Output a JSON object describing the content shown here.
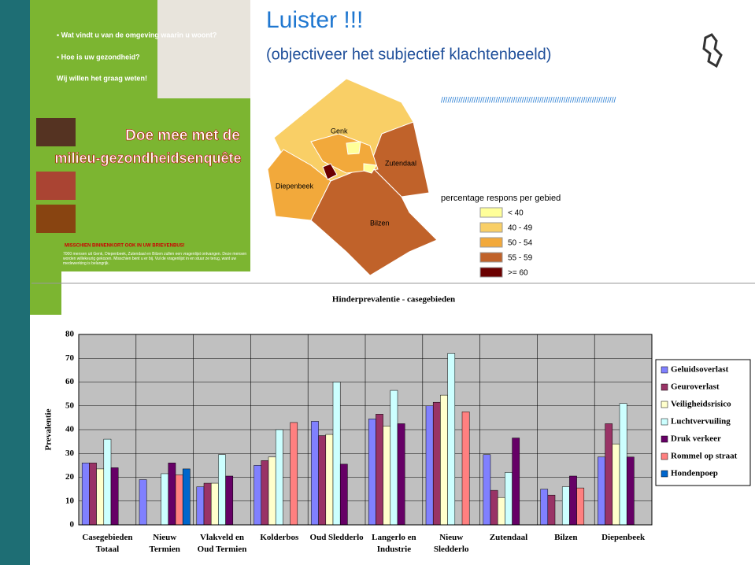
{
  "header": {
    "title": "Luister !!!",
    "subtitle": "(objectiveer het subjectief klachtenbeeld)",
    "decoration": "////////////////////////////////////////////////////////////////////////////////"
  },
  "poster": {
    "questions": [
      "• Wat vindt u van de omgeving waarin u woont?",
      "• Hoe is uw gezondheid?"
    ],
    "call": "Wij willen het graag weten!",
    "banner": [
      "Doe mee met de",
      "milieu-gezondheidsenquête"
    ],
    "mailbox": "MISSCHIEN BINNENKORT OOK IN UW BRIEVENBUS!",
    "body": "7000 mensen uit Genk, Diepenbeek, Zutendaal en Bilzen zullen een vragenlijst ontvangen. Deze mensen worden willekeurig gekozen. Misschien bent u er bij. Vul de vragenlijst in en stuur ze terug, want uw medewerking is belangrijk."
  },
  "map": {
    "regions": [
      "Genk",
      "Zutendaal",
      "Diepenbeek",
      "Bilzen"
    ],
    "legend_title": "percentage respons per gebied",
    "legend": [
      {
        "label": "< 40",
        "color": "#ffff99"
      },
      {
        "label": "40 - 49",
        "color": "#f9cf66"
      },
      {
        "label": "50 - 54",
        "color": "#f2a93b"
      },
      {
        "label": "55 - 59",
        "color": "#c0622a"
      },
      {
        "label": ">= 60",
        "color": "#6b0000"
      }
    ]
  },
  "chart_data": {
    "type": "bar",
    "title": "Hinderprevalentie - casegebieden",
    "y_label": "Prevalentie",
    "categories": [
      "Casegebieden\nTotaal",
      "Nieuw\nTermien",
      "Vlakveld en\nOud Termien",
      "Kolderbos",
      "Oud Sledderlo",
      "Langerlo en\nIndustrie",
      "Nieuw\nSledderlo",
      "Zutendaal",
      "Bilzen",
      "Diepenbeek"
    ],
    "series": [
      {
        "name": "Geluidsoverlast",
        "color": "#8080ff",
        "values": [
          26,
          19,
          16,
          25,
          43.5,
          44.5,
          50,
          29.5,
          15,
          28.5
        ]
      },
      {
        "name": "Geuroverlast",
        "color": "#993366",
        "values": [
          26,
          null,
          17.5,
          27,
          37.5,
          46.5,
          51.5,
          14.5,
          12.5,
          42.5
        ]
      },
      {
        "name": "Veiligheidsrisico",
        "color": "#ffffcc",
        "values": [
          23.5,
          null,
          17.5,
          28.5,
          38,
          41.5,
          54.5,
          11.5,
          null,
          34
        ]
      },
      {
        "name": "Luchtvervuiling",
        "color": "#ccffff",
        "values": [
          36,
          21.5,
          29.5,
          40,
          60,
          56.5,
          72,
          22,
          16,
          51
        ]
      },
      {
        "name": "Druk verkeer",
        "color": "#660066",
        "values": [
          24,
          26,
          20.5,
          null,
          25.5,
          42.5,
          null,
          36.5,
          20.5,
          28.5
        ]
      },
      {
        "name": "Rommel op straat",
        "color": "#ff8080",
        "values": [
          null,
          21,
          null,
          43,
          null,
          null,
          47.5,
          null,
          15.5,
          null
        ]
      },
      {
        "name": "Hondenpoep",
        "color": "#0066cc",
        "values": [
          null,
          23.5,
          null,
          null,
          null,
          null,
          null,
          null,
          null,
          null
        ]
      }
    ],
    "ylim": [
      0,
      80
    ],
    "yticks": [
      0,
      10,
      20,
      30,
      40,
      50,
      60,
      70,
      80
    ],
    "grid": true,
    "legend": "right"
  }
}
